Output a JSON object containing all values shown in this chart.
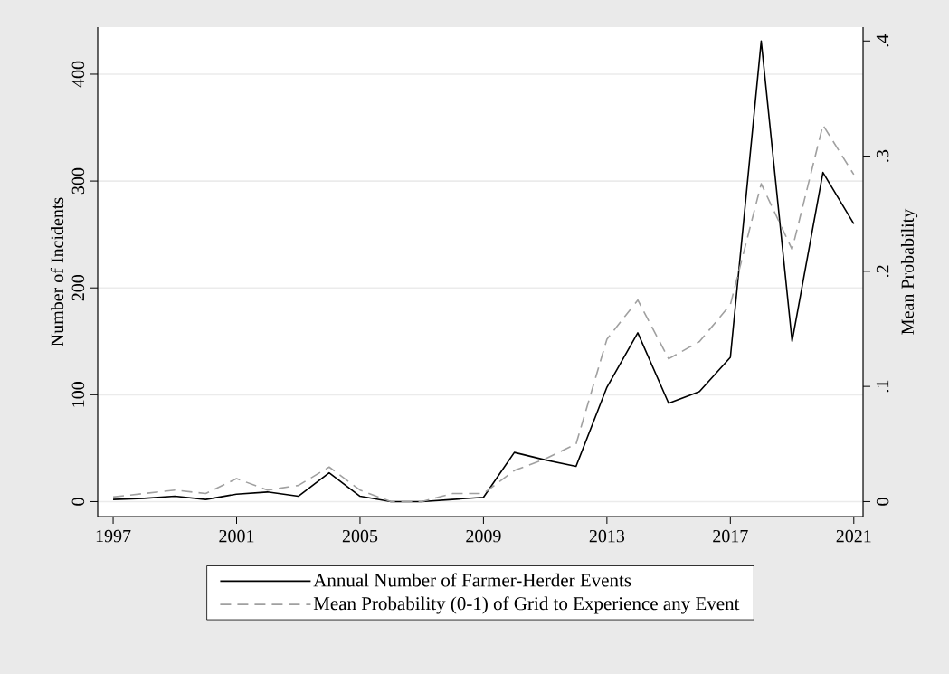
{
  "chart_data": {
    "type": "line",
    "ylabel": "Number of Incidents",
    "y2label": "Mean Probability",
    "x": [
      1997,
      1998,
      1999,
      2000,
      2001,
      2002,
      2003,
      2004,
      2005,
      2006,
      2007,
      2008,
      2009,
      2010,
      2011,
      2012,
      2013,
      2014,
      2015,
      2016,
      2017,
      2018,
      2019,
      2020,
      2021
    ],
    "series": [
      {
        "name": "Annual Number of Farmer-Herder Events",
        "color": "#000000",
        "line_style": "solid",
        "values": [
          2,
          3,
          5,
          2,
          7,
          9,
          5,
          27,
          5,
          0,
          0,
          2,
          4,
          46,
          39,
          33,
          107,
          158,
          92,
          103,
          135,
          431,
          150,
          308,
          260
        ]
      },
      {
        "name": "Mean Probability (0-1) of Grid to Experience any Event",
        "color": "#a0a0a0",
        "line_style": "dashed",
        "axis": "y2",
        "values": [
          0.004,
          0.007,
          0.01,
          0.007,
          0.02,
          0.01,
          0.014,
          0.03,
          0.01,
          0,
          0,
          0.007,
          0.007,
          0.027,
          0.037,
          0.05,
          0.141,
          0.175,
          0.124,
          0.139,
          0.171,
          0.276,
          0.219,
          0.327,
          0.284
        ]
      }
    ],
    "xlim": [
      1996.5,
      2021.3
    ],
    "xticks": [
      1997,
      2001,
      2005,
      2009,
      2013,
      2017,
      2021
    ],
    "ylim": [
      -14,
      444
    ],
    "yticks": [
      0,
      100,
      200,
      300,
      400
    ],
    "y2lim": [
      -0.013,
      0.412
    ],
    "y2ticks": [
      0,
      {
        "value": 0.1,
        "label": ".1"
      },
      {
        "value": 0.2,
        "label": ".2"
      },
      {
        "value": 0.3,
        "label": ".3"
      },
      {
        "value": 0.4,
        "label": ".4"
      }
    ],
    "grid": "y",
    "legend": "bottom",
    "marker": "none"
  }
}
